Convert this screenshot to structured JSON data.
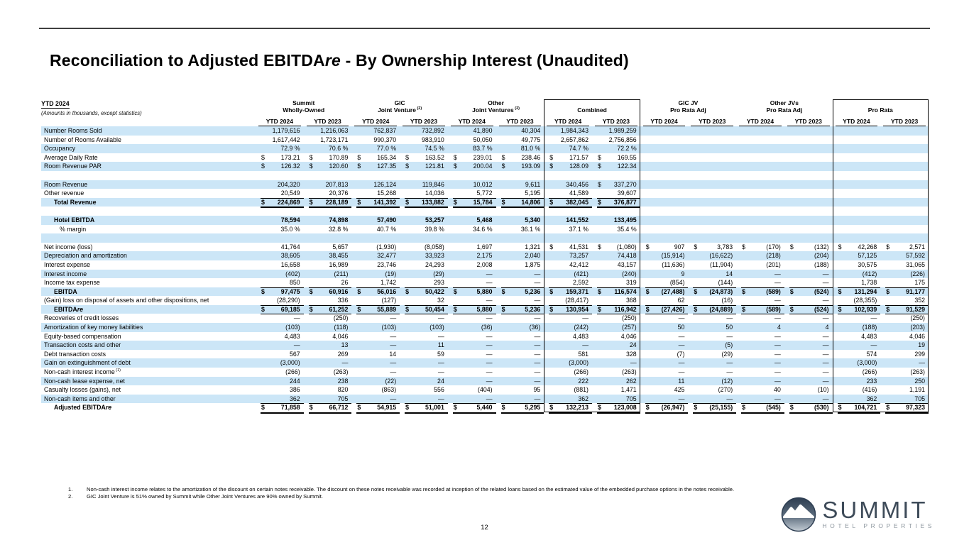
{
  "page": {
    "title_pre": "Reconciliation to Adjusted EBITDA",
    "title_it": "re",
    "title_post": " - By Ownership Interest (Unaudited)",
    "page_number": "12"
  },
  "colors": {
    "stripe": "#cce6f7",
    "border": "#000000",
    "logo_navy": "#35455a",
    "logo_gray": "#8e979f"
  },
  "table": {
    "left_header": {
      "line1": "YTD 2024",
      "line2": "(Amounts in thousands, except statistics)"
    },
    "year_labels": [
      "YTD 2024",
      "YTD 2023"
    ],
    "groups": [
      {
        "line1": "Summit",
        "line2": "Wholly-Owned",
        "sup": "",
        "boxed": false
      },
      {
        "line1": "GIC",
        "line2": "Joint Venture",
        "sup": "(2)",
        "boxed": false
      },
      {
        "line1": "Other",
        "line2": "Joint Ventures",
        "sup": "(2)",
        "boxed": false
      },
      {
        "line1": "",
        "line2": "Combined",
        "sup": "",
        "boxed": true
      },
      {
        "line1": "GIC JV",
        "line2": "Pro Rata Adj",
        "sup": "",
        "boxed": false
      },
      {
        "line1": "Other JVs",
        "line2": "Pro Rata Adj",
        "sup": "",
        "boxed": false
      },
      {
        "line1": "",
        "line2": "Pro Rata",
        "sup": "",
        "boxed": true
      }
    ],
    "rows": [
      {
        "label": "Number Rooms Sold",
        "shade": true,
        "cells": [
          "1,179,616",
          "1,216,063",
          "762,837",
          "732,892",
          "41,890",
          "40,304",
          "1,984,343",
          "1,989,259",
          "",
          "",
          "",
          "",
          "",
          ""
        ]
      },
      {
        "label": "Number of Rooms Available",
        "shade": false,
        "cells": [
          "1,617,442",
          "1,723,171",
          "990,370",
          "983,910",
          "50,050",
          "49,775",
          "2,657,862",
          "2,756,856",
          "",
          "",
          "",
          "",
          "",
          ""
        ]
      },
      {
        "label": "Occupancy",
        "shade": true,
        "cells": [
          "72.9 %",
          "70.6 %",
          "77.0 %",
          "74.5 %",
          "83.7 %",
          "81.0 %",
          "74.7 %",
          "72.2 %",
          "",
          "",
          "",
          "",
          "",
          ""
        ]
      },
      {
        "label": "Average Daily Rate",
        "shade": false,
        "cells": [
          "$173.21",
          "$170.89",
          "$165.34",
          "$163.52",
          "$239.01",
          "$238.46",
          "$171.57",
          "$169.55",
          "",
          "",
          "",
          "",
          "",
          ""
        ]
      },
      {
        "label": "Room Revenue PAR",
        "shade": true,
        "cells": [
          "$126.32",
          "$120.60",
          "$127.35",
          "$121.81",
          "$200.04",
          "$193.09",
          "$128.09",
          "$122.34",
          "",
          "",
          "",
          "",
          "",
          ""
        ]
      },
      {
        "spacer": true,
        "shade": false
      },
      {
        "label": "Room Revenue",
        "shade": true,
        "cells": [
          "204,320",
          "207,813",
          "126,124",
          "119,846",
          "10,012",
          "9,611",
          "340,456",
          "$337,270",
          "",
          "",
          "",
          "",
          "",
          ""
        ]
      },
      {
        "label": "Other revenue",
        "shade": false,
        "rule": "thin",
        "cells": [
          "20,549",
          "20,376",
          "15,268",
          "14,036",
          "5,772",
          "5,195",
          "41,589",
          "39,607",
          "",
          "",
          "",
          "",
          "",
          ""
        ]
      },
      {
        "label": "Total Revenue",
        "shade": true,
        "bold": true,
        "indent": 1,
        "rule": "thick",
        "cells": [
          "$224,869",
          "$228,189",
          "$141,392",
          "$133,882",
          "$15,784",
          "$14,806",
          "$382,045",
          "$376,877",
          "",
          "",
          "",
          "",
          "",
          ""
        ]
      },
      {
        "spacer": true,
        "shade": false
      },
      {
        "label": "Hotel EBITDA",
        "shade": true,
        "bold": true,
        "indent": 1,
        "cells": [
          "78,594",
          "74,898",
          "57,490",
          "53,257",
          "5,468",
          "5,340",
          "141,552",
          "133,495",
          "",
          "",
          "",
          "",
          "",
          ""
        ]
      },
      {
        "label": "% margin",
        "shade": false,
        "indent": 2,
        "cells": [
          "35.0 %",
          "32.8 %",
          "40.7 %",
          "39.8 %",
          "34.6 %",
          "36.1 %",
          "37.1 %",
          "35.4 %",
          "",
          "",
          "",
          "",
          "",
          ""
        ]
      },
      {
        "spacer": true,
        "shade": true
      },
      {
        "label": "Net income (loss)",
        "shade": false,
        "cells": [
          "41,764",
          "5,657",
          "(1,930)",
          "(8,058)",
          "1,697",
          "1,321",
          "$41,531",
          "$(1,080)",
          "$907",
          "$3,783",
          "$(170)",
          "$(132)",
          "$42,268",
          "$2,571"
        ]
      },
      {
        "label": "Depreciation and amortization",
        "shade": true,
        "cells": [
          "38,605",
          "38,455",
          "32,477",
          "33,923",
          "2,175",
          "2,040",
          "73,257",
          "74,418",
          "(15,914)",
          "(16,622)",
          "(218)",
          "(204)",
          "57,125",
          "57,592"
        ]
      },
      {
        "label": "Interest expense",
        "shade": false,
        "cells": [
          "16,658",
          "16,989",
          "23,746",
          "24,293",
          "2,008",
          "1,875",
          "42,412",
          "43,157",
          "(11,636)",
          "(11,904)",
          "(201)",
          "(188)",
          "30,575",
          "31,065"
        ]
      },
      {
        "label": "Interest income",
        "shade": true,
        "cells": [
          "(402)",
          "(211)",
          "(19)",
          "(29)",
          "—",
          "—",
          "(421)",
          "(240)",
          "9",
          "14",
          "—",
          "—",
          "(412)",
          "(226)"
        ]
      },
      {
        "label": "Income tax expense",
        "shade": false,
        "rule": "thin",
        "cells": [
          "850",
          "26",
          "1,742",
          "293",
          "—",
          "—",
          "2,592",
          "319",
          "(854)",
          "(144)",
          "—",
          "—",
          "1,738",
          "175"
        ]
      },
      {
        "label": "EBITDA",
        "shade": true,
        "bold": true,
        "indent": 1,
        "cells": [
          "$97,475",
          "$60,916",
          "$56,016",
          "$50,422",
          "$5,880",
          "$5,236",
          "$159,371",
          "$116,574",
          "$(27,488)",
          "$(24,873)",
          "$(589)",
          "$(524)",
          "$131,294",
          "$91,177"
        ]
      },
      {
        "label": "(Gain) loss on disposal of assets and other dispositions, net",
        "shade": false,
        "rule": "thin",
        "cells": [
          "(28,290)",
          "336",
          "(127)",
          "32",
          "—",
          "—",
          "(28,417)",
          "368",
          "62",
          "(16)",
          "—",
          "—",
          "(28,355)",
          "352"
        ]
      },
      {
        "label": "EBITDA",
        "label_it": "re",
        "shade": true,
        "bold": true,
        "indent": 1,
        "rule": "thin",
        "cells": [
          "$69,185",
          "$61,252",
          "$55,889",
          "$50,454",
          "$5,880",
          "$5,236",
          "$130,954",
          "$116,942",
          "$(27,426)",
          "$(24,889)",
          "$(589)",
          "$(524)",
          "$102,939",
          "$91,529"
        ]
      },
      {
        "label": "Recoveries of credit losses",
        "shade": false,
        "cells": [
          "—",
          "(250)",
          "—",
          "—",
          "—",
          "—",
          "—",
          "(250)",
          "—",
          "—",
          "—",
          "—",
          "—",
          "(250)"
        ]
      },
      {
        "label": "Amortization of key money liabilities",
        "shade": true,
        "cells": [
          "(103)",
          "(118)",
          "(103)",
          "(103)",
          "(36)",
          "(36)",
          "(242)",
          "(257)",
          "50",
          "50",
          "4",
          "4",
          "(188)",
          "(203)"
        ]
      },
      {
        "label": "Equity-based compensation",
        "shade": false,
        "cells": [
          "4,483",
          "4,046",
          "—",
          "—",
          "—",
          "—",
          "4,483",
          "4,046",
          "—",
          "—",
          "—",
          "—",
          "4,483",
          "4,046"
        ]
      },
      {
        "label": "Transaction costs and other",
        "shade": true,
        "cells": [
          "—",
          "13",
          "—",
          "11",
          "—",
          "—",
          "—",
          "24",
          "—",
          "(5)",
          "—",
          "—",
          "—",
          "19"
        ]
      },
      {
        "label": "Debt transaction costs",
        "shade": false,
        "cells": [
          "567",
          "269",
          "14",
          "59",
          "—",
          "—",
          "581",
          "328",
          "(7)",
          "(29)",
          "—",
          "—",
          "574",
          "299"
        ]
      },
      {
        "label": "Gain on extinguishment of debt",
        "shade": true,
        "cells": [
          "(3,000)",
          "—",
          "—",
          "—",
          "—",
          "—",
          "(3,000)",
          "—",
          "—",
          "—",
          "—",
          "—",
          "(3,000)",
          "—"
        ]
      },
      {
        "label": "Non-cash interest income",
        "sup": "(1)",
        "shade": false,
        "cells": [
          "(266)",
          "(263)",
          "—",
          "—",
          "—",
          "—",
          "(266)",
          "(263)",
          "—",
          "—",
          "—",
          "—",
          "(266)",
          "(263)"
        ]
      },
      {
        "label": "Non-cash lease expense, net",
        "shade": true,
        "cells": [
          "244",
          "238",
          "(22)",
          "24",
          "—",
          "—",
          "222",
          "262",
          "11",
          "(12)",
          "—",
          "—",
          "233",
          "250"
        ]
      },
      {
        "label": "Casualty losses (gains), net",
        "shade": false,
        "cells": [
          "386",
          "820",
          "(863)",
          "556",
          "(404)",
          "95",
          "(881)",
          "1,471",
          "425",
          "(270)",
          "40",
          "(10)",
          "(416)",
          "1,191"
        ]
      },
      {
        "label": "Non-cash items and other",
        "shade": true,
        "rule": "thin",
        "cells": [
          "362",
          "705",
          "—",
          "—",
          "—",
          "—",
          "362",
          "705",
          "—",
          "—",
          "—",
          "—",
          "362",
          "705"
        ]
      },
      {
        "label": "Adjusted EBITDA",
        "label_it": "re",
        "shade": false,
        "bold": true,
        "indent": 1,
        "rule": "thick",
        "cells": [
          "$71,858",
          "$66,712",
          "$54,915",
          "$51,001",
          "$5,440",
          "$5,295",
          "$132,213",
          "$123,008",
          "$(26,947)",
          "$(25,155)",
          "$(545)",
          "$(530)",
          "$104,721",
          "$97,323"
        ]
      }
    ]
  },
  "footnotes": [
    {
      "num": "1.",
      "text": "Non-cash interest income relates to the amortization of the discount on certain notes receivable. The discount on these notes receivable was recorded at inception of the related loans based on the estimated value of the embedded purchase options in the notes receivable."
    },
    {
      "num": "2.",
      "text": "GIC Joint Venture is 51% owned by Summit while Other Joint Ventures are 90% owned by Summit."
    }
  ],
  "logo": {
    "name": "SUMMIT",
    "subtitle": "HOTEL PROPERTIES"
  }
}
